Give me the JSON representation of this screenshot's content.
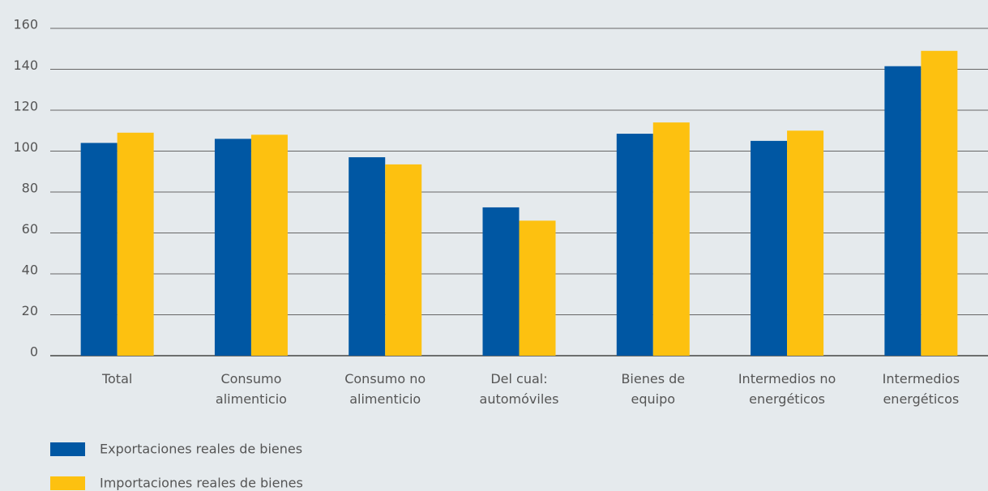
{
  "chart_data": {
    "type": "grouped_bar",
    "categories": [
      "Total",
      "Consumo\nalimenticio",
      "Consumo no\nalimenticio",
      "Del cual:\nautomóviles",
      "Bienes de\nequipo",
      "Intermedios no\nenergéticos",
      "Intermedios\nenergéticos"
    ],
    "series": [
      {
        "name": "Exportaciones reales de bienes",
        "color": "#0057a3",
        "values": [
          104,
          106,
          97,
          72.5,
          108.5,
          105,
          141.5
        ]
      },
      {
        "name": "Importaciones reales de bienes",
        "color": "#fdc110",
        "values": [
          109,
          108,
          93.5,
          66,
          114,
          110,
          149
        ]
      }
    ],
    "ylim": [
      0,
      160
    ],
    "yticks": [
      0,
      20,
      40,
      60,
      80,
      100,
      120,
      140,
      160
    ],
    "grid": true
  }
}
